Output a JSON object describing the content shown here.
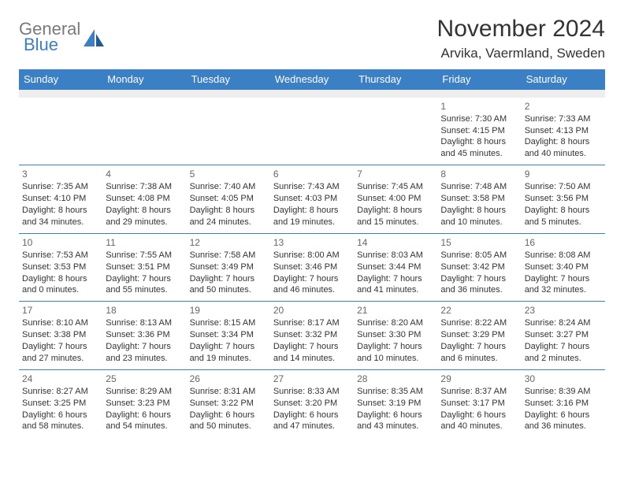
{
  "brand": {
    "word1": "General",
    "word2": "Blue"
  },
  "title": "November 2024",
  "location": "Arvika, Vaermland, Sweden",
  "colors": {
    "header_bg": "#3b7fc4",
    "header_text": "#ffffff",
    "spacer_bg": "#eeeeee",
    "border": "#3b7fc4",
    "text": "#333333",
    "daynum": "#666666",
    "logo_gray": "#7a7a7a",
    "logo_blue": "#3b7fc4",
    "page_bg": "#ffffff"
  },
  "day_headers": [
    "Sunday",
    "Monday",
    "Tuesday",
    "Wednesday",
    "Thursday",
    "Friday",
    "Saturday"
  ],
  "weeks": [
    [
      null,
      null,
      null,
      null,
      null,
      {
        "n": "1",
        "sunrise": "7:30 AM",
        "sunset": "4:15 PM",
        "day_h": "8",
        "day_m": "45"
      },
      {
        "n": "2",
        "sunrise": "7:33 AM",
        "sunset": "4:13 PM",
        "day_h": "8",
        "day_m": "40"
      }
    ],
    [
      {
        "n": "3",
        "sunrise": "7:35 AM",
        "sunset": "4:10 PM",
        "day_h": "8",
        "day_m": "34"
      },
      {
        "n": "4",
        "sunrise": "7:38 AM",
        "sunset": "4:08 PM",
        "day_h": "8",
        "day_m": "29"
      },
      {
        "n": "5",
        "sunrise": "7:40 AM",
        "sunset": "4:05 PM",
        "day_h": "8",
        "day_m": "24"
      },
      {
        "n": "6",
        "sunrise": "7:43 AM",
        "sunset": "4:03 PM",
        "day_h": "8",
        "day_m": "19"
      },
      {
        "n": "7",
        "sunrise": "7:45 AM",
        "sunset": "4:00 PM",
        "day_h": "8",
        "day_m": "15"
      },
      {
        "n": "8",
        "sunrise": "7:48 AM",
        "sunset": "3:58 PM",
        "day_h": "8",
        "day_m": "10"
      },
      {
        "n": "9",
        "sunrise": "7:50 AM",
        "sunset": "3:56 PM",
        "day_h": "8",
        "day_m": "5"
      }
    ],
    [
      {
        "n": "10",
        "sunrise": "7:53 AM",
        "sunset": "3:53 PM",
        "day_h": "8",
        "day_m": "0"
      },
      {
        "n": "11",
        "sunrise": "7:55 AM",
        "sunset": "3:51 PM",
        "day_h": "7",
        "day_m": "55"
      },
      {
        "n": "12",
        "sunrise": "7:58 AM",
        "sunset": "3:49 PM",
        "day_h": "7",
        "day_m": "50"
      },
      {
        "n": "13",
        "sunrise": "8:00 AM",
        "sunset": "3:46 PM",
        "day_h": "7",
        "day_m": "46"
      },
      {
        "n": "14",
        "sunrise": "8:03 AM",
        "sunset": "3:44 PM",
        "day_h": "7",
        "day_m": "41"
      },
      {
        "n": "15",
        "sunrise": "8:05 AM",
        "sunset": "3:42 PM",
        "day_h": "7",
        "day_m": "36"
      },
      {
        "n": "16",
        "sunrise": "8:08 AM",
        "sunset": "3:40 PM",
        "day_h": "7",
        "day_m": "32"
      }
    ],
    [
      {
        "n": "17",
        "sunrise": "8:10 AM",
        "sunset": "3:38 PM",
        "day_h": "7",
        "day_m": "27"
      },
      {
        "n": "18",
        "sunrise": "8:13 AM",
        "sunset": "3:36 PM",
        "day_h": "7",
        "day_m": "23"
      },
      {
        "n": "19",
        "sunrise": "8:15 AM",
        "sunset": "3:34 PM",
        "day_h": "7",
        "day_m": "19"
      },
      {
        "n": "20",
        "sunrise": "8:17 AM",
        "sunset": "3:32 PM",
        "day_h": "7",
        "day_m": "14"
      },
      {
        "n": "21",
        "sunrise": "8:20 AM",
        "sunset": "3:30 PM",
        "day_h": "7",
        "day_m": "10"
      },
      {
        "n": "22",
        "sunrise": "8:22 AM",
        "sunset": "3:29 PM",
        "day_h": "7",
        "day_m": "6"
      },
      {
        "n": "23",
        "sunrise": "8:24 AM",
        "sunset": "3:27 PM",
        "day_h": "7",
        "day_m": "2"
      }
    ],
    [
      {
        "n": "24",
        "sunrise": "8:27 AM",
        "sunset": "3:25 PM",
        "day_h": "6",
        "day_m": "58"
      },
      {
        "n": "25",
        "sunrise": "8:29 AM",
        "sunset": "3:23 PM",
        "day_h": "6",
        "day_m": "54"
      },
      {
        "n": "26",
        "sunrise": "8:31 AM",
        "sunset": "3:22 PM",
        "day_h": "6",
        "day_m": "50"
      },
      {
        "n": "27",
        "sunrise": "8:33 AM",
        "sunset": "3:20 PM",
        "day_h": "6",
        "day_m": "47"
      },
      {
        "n": "28",
        "sunrise": "8:35 AM",
        "sunset": "3:19 PM",
        "day_h": "6",
        "day_m": "43"
      },
      {
        "n": "29",
        "sunrise": "8:37 AM",
        "sunset": "3:17 PM",
        "day_h": "6",
        "day_m": "40"
      },
      {
        "n": "30",
        "sunrise": "8:39 AM",
        "sunset": "3:16 PM",
        "day_h": "6",
        "day_m": "36"
      }
    ]
  ],
  "labels": {
    "sunrise": "Sunrise:",
    "sunset": "Sunset:",
    "daylight": "Daylight:",
    "hours": "hours",
    "and": "and",
    "minutes": "minutes."
  }
}
